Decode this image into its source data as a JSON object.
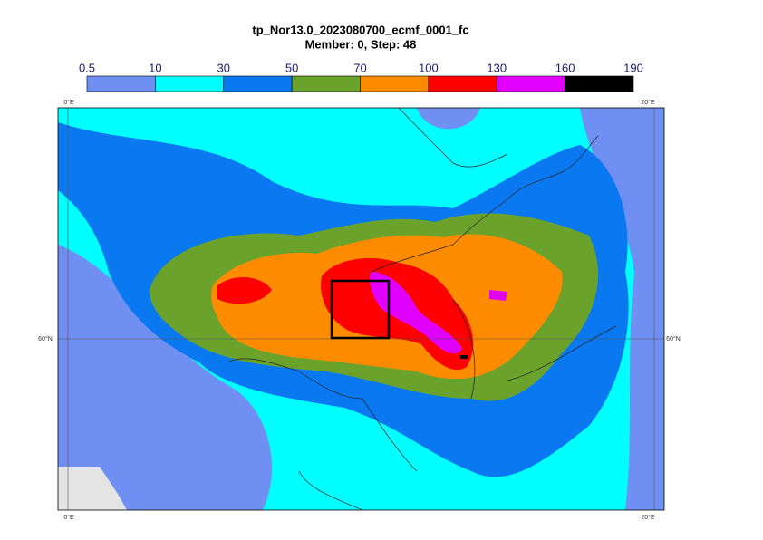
{
  "title": "tp_Nor13.0_2023080700_ecmf_0001_fc",
  "subtitle": "Member: 0, Step: 48",
  "colorbar": {
    "levels": [
      0.5,
      10,
      30,
      50,
      70,
      100,
      130,
      160,
      190
    ],
    "colors": [
      "#6f8ff2",
      "#00ffff",
      "#0a78f0",
      "#6aa22c",
      "#ff8c00",
      "#ff0000",
      "#e100ff",
      "#000000"
    ]
  },
  "map": {
    "lon_labels": [
      "0°E",
      "20°E"
    ],
    "lat_labels": [
      "60°N"
    ]
  }
}
